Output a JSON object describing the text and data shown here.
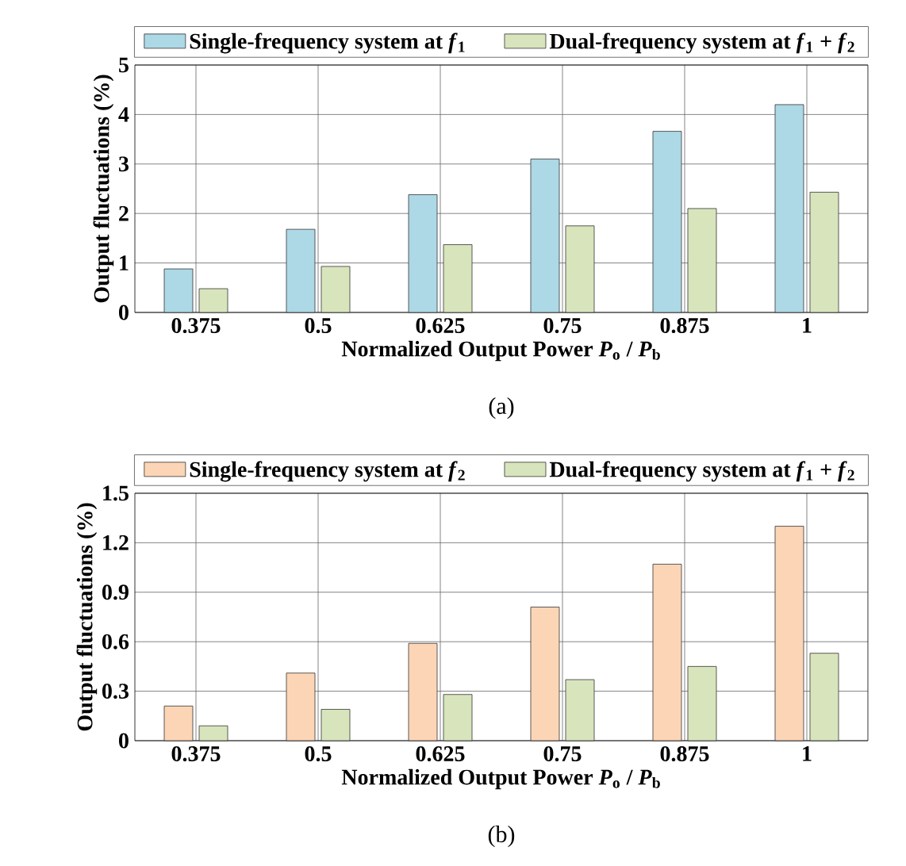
{
  "chart_data": [
    {
      "type": "bar",
      "xlabel": "Normalized Output Power *P*$_{o}$ / *P*$_{b}$",
      "ylabel": "Output fluctuations (%)",
      "categories": [
        "0.375",
        "0.5",
        "0.625",
        "0.75",
        "0.875",
        "1"
      ],
      "series": [
        {
          "name": "Single-frequency system at *f*$_{1}$",
          "color": "#add8e6",
          "values": [
            0.88,
            1.68,
            2.38,
            3.1,
            3.66,
            4.2
          ]
        },
        {
          "name": "Dual-frequency system at *f*$_{1}$ + *f*$_{2}$",
          "color": "#d8e4bc",
          "values": [
            0.48,
            0.93,
            1.37,
            1.75,
            2.1,
            2.43
          ]
        }
      ],
      "ylim": [
        0,
        5
      ],
      "yticks": [
        0,
        1,
        2,
        3,
        4,
        5
      ],
      "grid": true,
      "legend": "top",
      "annotations": [
        "(a)"
      ]
    },
    {
      "type": "bar",
      "xlabel": "Normalized Output Power *P*$_{o}$ / *P*$_{b}$",
      "ylabel": "Output fluctuations (%)",
      "categories": [
        "0.375",
        "0.5",
        "0.625",
        "0.75",
        "0.875",
        "1"
      ],
      "series": [
        {
          "name": "Single-frequency system at *f*$_{2}$",
          "color": "#fbd5b5",
          "values": [
            0.21,
            0.41,
            0.59,
            0.81,
            1.07,
            1.3
          ]
        },
        {
          "name": "Dual-frequency system at *f*$_{1}$ + *f*$_{2}$",
          "color": "#d8e4bc",
          "values": [
            0.09,
            0.19,
            0.28,
            0.37,
            0.45,
            0.53
          ]
        }
      ],
      "ylim": [
        0,
        1.5
      ],
      "yticks": [
        0,
        0.3,
        0.6,
        0.9,
        1.2,
        1.5
      ],
      "grid": true,
      "legend": "top",
      "annotations": [
        "(b)"
      ]
    }
  ]
}
